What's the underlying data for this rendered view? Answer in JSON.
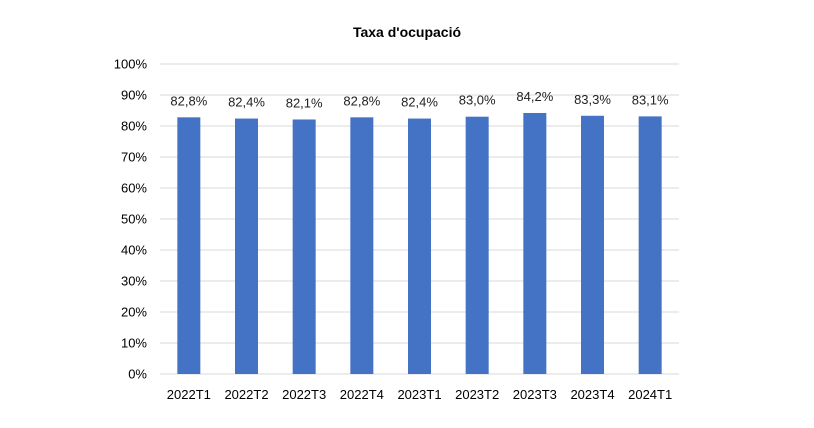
{
  "chart_data": {
    "type": "bar",
    "title": "Taxa d'ocupació",
    "xlabel": "",
    "ylabel": "",
    "categories": [
      "2022T1",
      "2022T2",
      "2022T3",
      "2022T4",
      "2023T1",
      "2023T2",
      "2023T3",
      "2023T4",
      "2024T1"
    ],
    "values": [
      82.8,
      82.4,
      82.1,
      82.8,
      82.4,
      83.0,
      84.2,
      83.3,
      83.1
    ],
    "data_labels": [
      "82,8%",
      "82,4%",
      "82,1%",
      "82,8%",
      "82,4%",
      "83,0%",
      "84,2%",
      "83,3%",
      "83,1%"
    ],
    "ylim": [
      0,
      100
    ],
    "yticks": [
      0,
      10,
      20,
      30,
      40,
      50,
      60,
      70,
      80,
      90,
      100
    ],
    "ytick_labels": [
      "0%",
      "10%",
      "20%",
      "30%",
      "40%",
      "50%",
      "60%",
      "70%",
      "80%",
      "90%",
      "100%"
    ],
    "grid": true,
    "legend": "none",
    "bar_color": "#4472C4",
    "grid_color": "#D9D9D9"
  }
}
